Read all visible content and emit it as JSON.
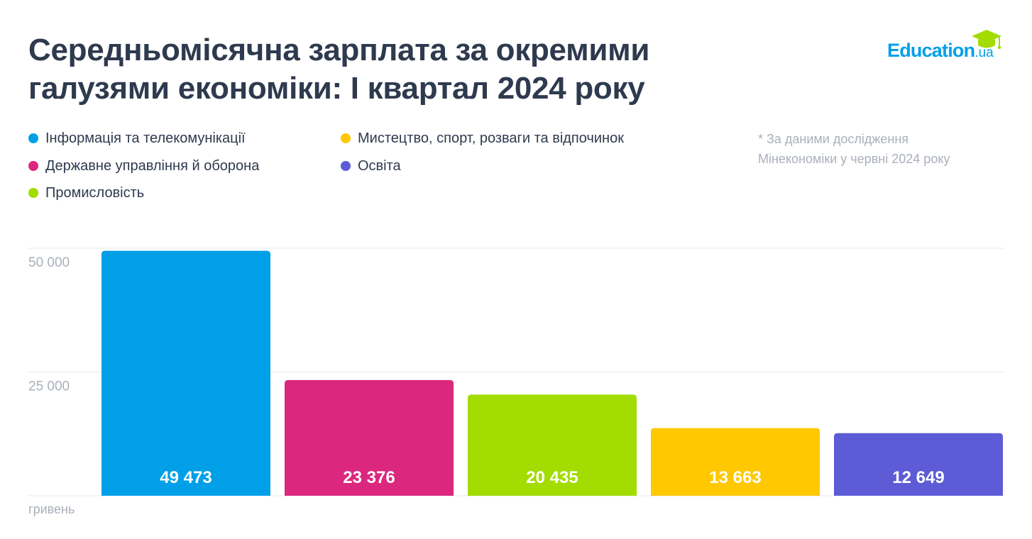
{
  "header": {
    "title_lines": [
      "Середньомісячна зарплата за окремими",
      "галузями економіки: І квартал 2024 року"
    ],
    "logo_main": "Education",
    "logo_suffix": ".ua",
    "source_lines": [
      "* За даними дослідження",
      "Мінекономіки у червні 2024 року"
    ],
    "unit_label": "гривень"
  },
  "legend": [
    {
      "label": "Інформація та телекомунікації",
      "color": "#009fe8"
    },
    {
      "label": "Державне управління й оборона",
      "color": "#db277d"
    },
    {
      "label": "Промисловість",
      "color": "#a2dc00"
    },
    {
      "label": "Мистецтво, спорт, розваги та відпочинок",
      "color": "#ffc800"
    },
    {
      "label": "Освіта",
      "color": "#5d5cd6"
    }
  ],
  "chart_data": {
    "type": "bar",
    "categories": [
      "Інформація та телекомунікації",
      "Державне управління й оборона",
      "Промисловість",
      "Мистецтво, спорт, розваги та відпочинок",
      "Освіта"
    ],
    "values": [
      49473,
      23376,
      20435,
      13663,
      12649
    ],
    "value_labels": [
      "49 473",
      "23 376",
      "20 435",
      "13 663",
      "12 649"
    ],
    "colors": [
      "#009fe8",
      "#db277d",
      "#a2dc00",
      "#ffc800",
      "#5d5cd6"
    ],
    "yticks": [
      25000,
      50000
    ],
    "ytick_labels": [
      "25 000",
      "50 000"
    ],
    "ylim": [
      0,
      50000
    ],
    "grid": true,
    "ylabel": "гривень"
  }
}
